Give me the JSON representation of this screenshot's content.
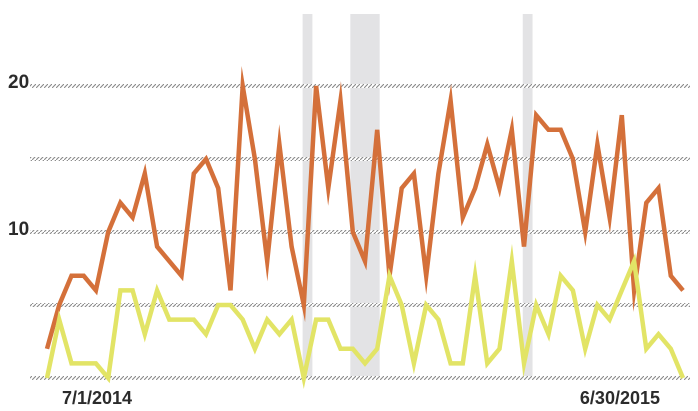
{
  "chart_data": {
    "type": "line",
    "title": "",
    "xlabel": "",
    "ylabel": "",
    "ylim": [
      0,
      24
    ],
    "y_ticks": [
      10,
      20
    ],
    "y_tick_labels": [
      "10",
      "20"
    ],
    "grid": true,
    "legend": "none",
    "x_labels": {
      "start": "7/1/2014",
      "end": "6/30/2015"
    },
    "x_index_range": [
      0,
      52
    ],
    "shaded_bands": [
      {
        "from": 20.9,
        "to": 21.7
      },
      {
        "from": 24.8,
        "to": 27.2
      },
      {
        "from": 38.9,
        "to": 39.7
      }
    ],
    "series": [
      {
        "color": "#d4703a",
        "values": [
          2,
          5,
          7,
          7,
          6,
          10,
          12,
          11,
          14,
          9,
          8,
          7,
          14,
          15,
          13,
          6,
          20,
          15,
          8,
          16,
          9,
          5,
          20,
          13,
          19,
          10,
          8,
          17,
          7,
          13,
          14,
          7,
          14,
          19,
          11,
          13,
          16,
          13,
          17,
          9,
          18,
          17,
          17,
          15,
          10,
          16,
          11,
          18,
          6,
          12,
          13,
          7,
          6
        ]
      },
      {
        "color": "#e2e466",
        "values": [
          0,
          4,
          1,
          1,
          1,
          0,
          6,
          6,
          3,
          6,
          4,
          4,
          4,
          3,
          5,
          5,
          4,
          2,
          4,
          3,
          4,
          0,
          4,
          4,
          2,
          2,
          1,
          2,
          7,
          5,
          1,
          5,
          4,
          1,
          1,
          7,
          1,
          2,
          8,
          1,
          5,
          3,
          7,
          6,
          2,
          5,
          4,
          6,
          8,
          2,
          3,
          2,
          0
        ]
      }
    ]
  }
}
